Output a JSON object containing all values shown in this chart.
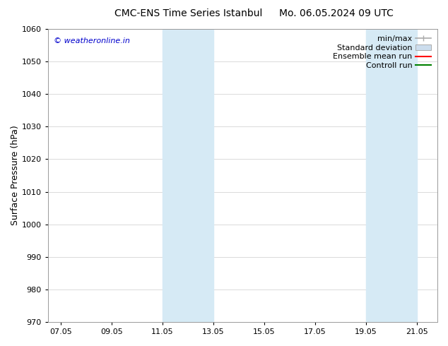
{
  "title_left": "CMC-ENS Time Series Istanbul",
  "title_right": "Mo. 06.05.2024 09 UTC",
  "ylabel": "Surface Pressure (hPa)",
  "ylim": [
    970,
    1060
  ],
  "yticks": [
    970,
    980,
    990,
    1000,
    1010,
    1020,
    1030,
    1040,
    1050,
    1060
  ],
  "xlim_start": 6.5,
  "xlim_end": 21.8,
  "xtick_labels": [
    "07.05",
    "09.05",
    "11.05",
    "13.05",
    "15.05",
    "17.05",
    "19.05",
    "21.05"
  ],
  "xtick_positions": [
    7.0,
    9.0,
    11.0,
    13.0,
    15.0,
    17.0,
    19.0,
    21.0
  ],
  "shaded_bands": [
    {
      "x_start": 11.0,
      "x_end": 12.0,
      "color": "#d6eaf5"
    },
    {
      "x_start": 12.0,
      "x_end": 13.0,
      "color": "#d6eaf5"
    },
    {
      "x_start": 19.0,
      "x_end": 20.0,
      "color": "#d6eaf5"
    },
    {
      "x_start": 20.0,
      "x_end": 21.0,
      "color": "#d6eaf5"
    }
  ],
  "legend_entries": [
    {
      "label": "min/max",
      "color": "#aaaaaa",
      "type": "errbar"
    },
    {
      "label": "Standard deviation",
      "color": "#ccdded",
      "type": "box"
    },
    {
      "label": "Ensemble mean run",
      "color": "red",
      "type": "line",
      "lw": 1.5
    },
    {
      "label": "Controll run",
      "color": "green",
      "type": "line",
      "lw": 1.5
    }
  ],
  "watermark_text": "© weatheronline.in",
  "watermark_color": "#0000cc",
  "background_color": "#ffffff",
  "plot_bg_color": "#ffffff",
  "grid_color": "#cccccc",
  "title_fontsize": 10,
  "axis_label_fontsize": 9,
  "tick_fontsize": 8,
  "legend_fontsize": 8
}
